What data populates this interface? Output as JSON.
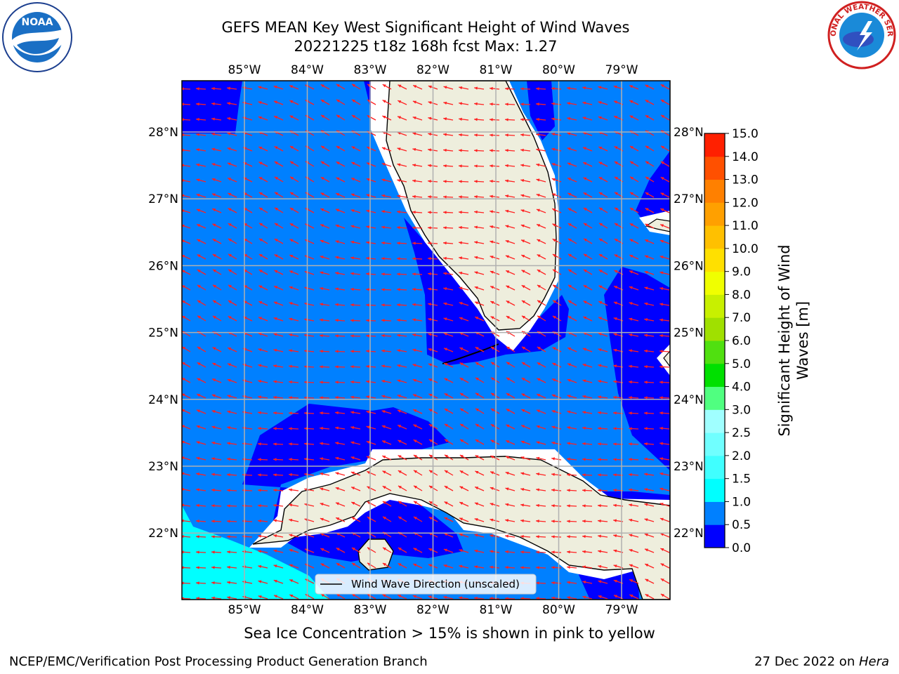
{
  "title_line1": "GEFS MEAN Key West Significant Height of Wind Waves",
  "title_line2": "20221225 t18z 168h fcst   Max: 1.27",
  "sea_ice_note": "Sea Ice Concentration > 15% is shown in pink to yellow",
  "footer_left": "NCEP/EMC/Verification Post Processing Product Generation Branch",
  "footer_date": "27 Dec 2022 on ",
  "footer_host": "Hera",
  "legend_label": "Wind Wave Direction (unscaled)",
  "colorbar_label": "Significant Height of Wind Waves [m]",
  "logos": {
    "left": "NOAA",
    "right": "NATIONAL WEATHER SERVICE"
  },
  "colors": {
    "land": "#eeeedd",
    "grid": "#b0b0b0",
    "arrow": "#ff2020"
  },
  "chart_data": {
    "type": "heatmap",
    "title": "GEFS MEAN Key West Significant Height of Wind Waves",
    "subtitle": "20221225 t18z 168h fcst   Max: 1.27",
    "max_value": 1.27,
    "lon_ticks": [
      "85°W",
      "84°W",
      "83°W",
      "82°W",
      "81°W",
      "80°W",
      "79°W"
    ],
    "lat_ticks": [
      "28°N",
      "27°N",
      "26°N",
      "25°N",
      "24°N",
      "23°N",
      "22°N"
    ],
    "colorbar": {
      "label": "Significant Height of Wind Waves [m]",
      "ticks": [
        "0.0",
        "0.5",
        "1.0",
        "1.5",
        "2.0",
        "2.5",
        "3.0",
        "4.0",
        "5.0",
        "6.0",
        "7.0",
        "8.0",
        "9.0",
        "10.0",
        "11.0",
        "12.0",
        "13.0",
        "14.0",
        "15.0"
      ],
      "bins": [
        {
          "lo": 0.0,
          "hi": 0.5,
          "color": "#0000ff"
        },
        {
          "lo": 0.5,
          "hi": 1.0,
          "color": "#0080ff"
        },
        {
          "lo": 1.0,
          "hi": 1.5,
          "color": "#00ffff"
        },
        {
          "lo": 1.5,
          "hi": 2.0,
          "color": "#40ffff"
        },
        {
          "lo": 2.0,
          "hi": 2.5,
          "color": "#70ffff"
        },
        {
          "lo": 2.5,
          "hi": 3.0,
          "color": "#a0ffff"
        },
        {
          "lo": 3.0,
          "hi": 4.0,
          "color": "#50ff80"
        },
        {
          "lo": 4.0,
          "hi": 5.0,
          "color": "#00e000"
        },
        {
          "lo": 5.0,
          "hi": 6.0,
          "color": "#50e010"
        },
        {
          "lo": 6.0,
          "hi": 7.0,
          "color": "#a0e000"
        },
        {
          "lo": 7.0,
          "hi": 8.0,
          "color": "#c8f000"
        },
        {
          "lo": 8.0,
          "hi": 9.0,
          "color": "#f0ff00"
        },
        {
          "lo": 9.0,
          "hi": 10.0,
          "color": "#ffe000"
        },
        {
          "lo": 10.0,
          "hi": 11.0,
          "color": "#ffc000"
        },
        {
          "lo": 11.0,
          "hi": 12.0,
          "color": "#ffa000"
        },
        {
          "lo": 12.0,
          "hi": 13.0,
          "color": "#ff8000"
        },
        {
          "lo": 13.0,
          "hi": 14.0,
          "color": "#ff5000"
        },
        {
          "lo": 14.0,
          "hi": 15.0,
          "color": "#ff2000"
        }
      ]
    },
    "legend": "Wind Wave Direction (unscaled)"
  }
}
